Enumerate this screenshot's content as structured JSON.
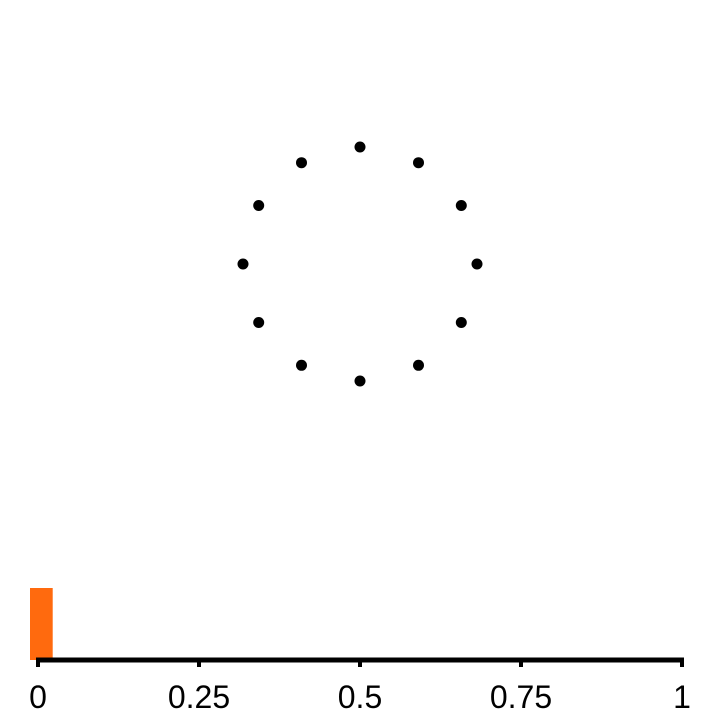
{
  "stimulus": {
    "dot_count": 12,
    "dot_color": "#000000"
  },
  "progress": {
    "value": 0.012,
    "bar_color": "#ff6a0e",
    "axis_color": "#000000"
  },
  "axis": {
    "min": 0,
    "max": 1,
    "ticks": [
      {
        "value": 0,
        "label": "0"
      },
      {
        "value": 0.25,
        "label": "0.25"
      },
      {
        "value": 0.5,
        "label": "0.5"
      },
      {
        "value": 0.75,
        "label": "0.75"
      },
      {
        "value": 1,
        "label": "1"
      }
    ]
  }
}
